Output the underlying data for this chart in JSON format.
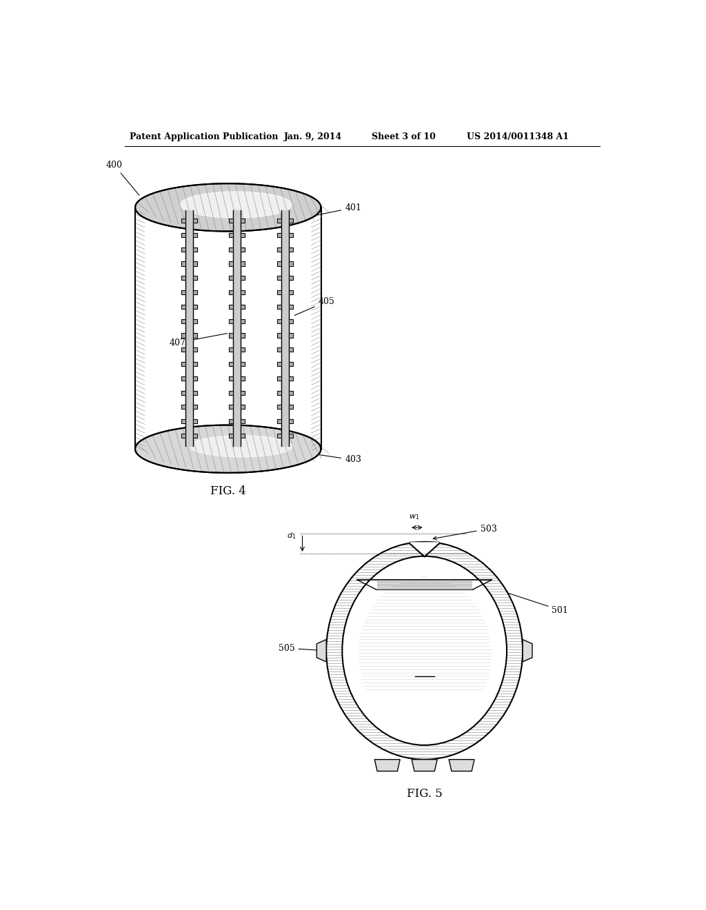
{
  "title_text": "Patent Application Publication",
  "date_text": "Jan. 9, 2014",
  "sheet_text": "Sheet 3 of 10",
  "patent_text": "US 2014/0011348 A1",
  "fig4_label": "FIG. 4",
  "fig5_label": "FIG. 5",
  "bg_color": "#ffffff",
  "line_color": "#000000"
}
